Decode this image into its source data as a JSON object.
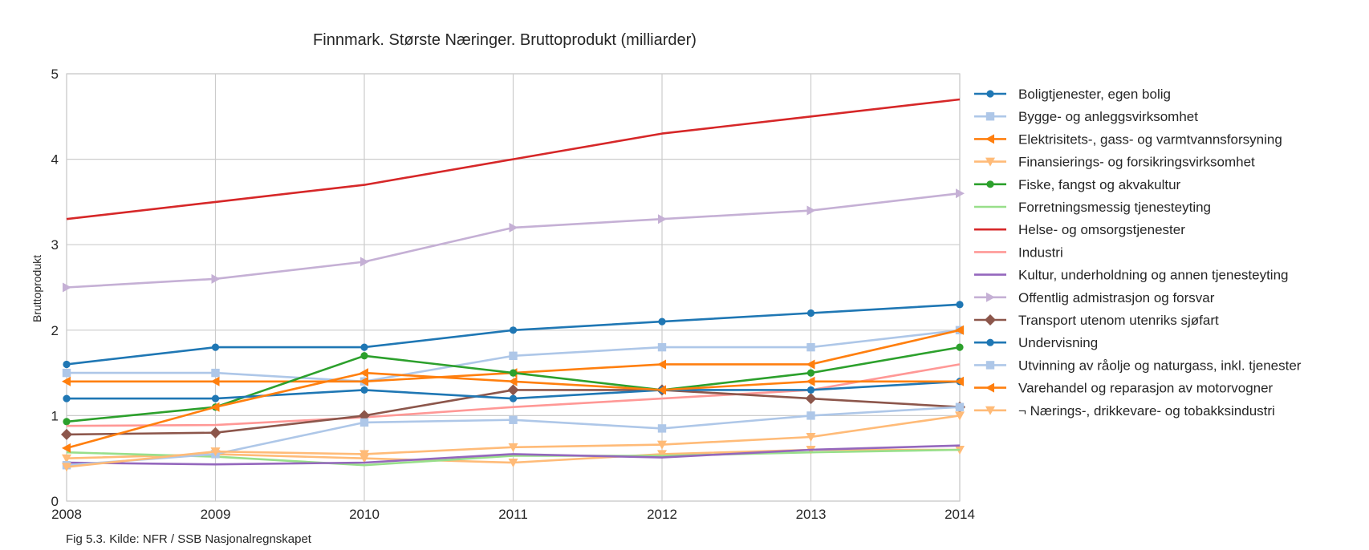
{
  "chart_data": {
    "type": "line",
    "title": "Finnmark. Største Næringer. Bruttoprodukt (milliarder)",
    "xlabel": "",
    "ylabel": "Bruttoprodukt",
    "x": [
      2008,
      2009,
      2010,
      2011,
      2012,
      2013,
      2014
    ],
    "x_ticks": [
      "2008",
      "2009",
      "2010",
      "2011",
      "2012",
      "2013",
      "2014"
    ],
    "ylim": [
      0,
      5
    ],
    "y_ticks": [
      "0",
      "1",
      "2",
      "3",
      "4",
      "5"
    ],
    "grid": true,
    "legend_position": "right",
    "series": [
      {
        "name": "Boligtjenester, egen bolig",
        "color": "#1f77b4",
        "marker": "circle",
        "values": [
          1.6,
          1.8,
          1.8,
          2.0,
          2.1,
          2.2,
          2.3
        ]
      },
      {
        "name": "Bygge- og anleggsvirksomhet",
        "color": "#aec7e8",
        "marker": "square",
        "values": [
          1.5,
          1.5,
          1.4,
          1.7,
          1.8,
          1.8,
          2.0
        ]
      },
      {
        "name": "Elektrisitets-, gass- og varmtvannsforsyning",
        "color": "#ff7f0e",
        "marker": "triangle-left",
        "values": [
          1.4,
          1.4,
          1.4,
          1.5,
          1.6,
          1.6,
          2.0
        ]
      },
      {
        "name": "Finansierings- og forsikringsvirksomhet",
        "color": "#ffbb78",
        "marker": "triangle-down",
        "values": [
          0.5,
          0.55,
          0.5,
          0.45,
          0.55,
          0.6,
          0.6
        ]
      },
      {
        "name": "Fiske, fangst og akvakultur",
        "color": "#2ca02c",
        "marker": "circle",
        "values": [
          0.93,
          1.1,
          1.7,
          1.5,
          1.3,
          1.5,
          1.8
        ]
      },
      {
        "name": "Forretningsmessig tjenesteyting",
        "color": "#98df8a",
        "marker": "none",
        "values": [
          0.57,
          0.52,
          0.42,
          0.53,
          0.53,
          0.57,
          0.6
        ]
      },
      {
        "name": "Helse- og omsorgstjenester",
        "color": "#d62728",
        "marker": "none",
        "values": [
          3.3,
          3.5,
          3.7,
          4.0,
          4.3,
          4.5,
          4.7
        ]
      },
      {
        "name": "Industri",
        "color": "#ff9896",
        "marker": "none",
        "values": [
          0.88,
          0.89,
          0.98,
          1.1,
          1.2,
          1.3,
          1.6
        ]
      },
      {
        "name": "Kultur, underholdning og annen tjenesteyting",
        "color": "#9467bd",
        "marker": "none",
        "values": [
          0.45,
          0.43,
          0.45,
          0.55,
          0.51,
          0.6,
          0.65
        ]
      },
      {
        "name": "Offentlig admistrasjon og forsvar",
        "color": "#c5b0d5",
        "marker": "triangle-right",
        "values": [
          2.5,
          2.6,
          2.8,
          3.2,
          3.3,
          3.4,
          3.6
        ]
      },
      {
        "name": "Transport utenom utenriks sjøfart",
        "color": "#8c564b",
        "marker": "diamond",
        "values": [
          0.78,
          0.8,
          1.0,
          1.3,
          1.3,
          1.2,
          1.1
        ]
      },
      {
        "name": "Undervisning",
        "color": "#1f77b4",
        "marker": "circle",
        "values": [
          1.2,
          1.2,
          1.3,
          1.2,
          1.3,
          1.3,
          1.4
        ]
      },
      {
        "name": "Utvinning av råolje og naturgass, inkl. tjenester",
        "color": "#aec7e8",
        "marker": "square",
        "values": [
          0.42,
          0.55,
          0.92,
          0.95,
          0.85,
          1.0,
          1.1
        ]
      },
      {
        "name": "Varehandel og reparasjon av motorvogner",
        "color": "#ff7f0e",
        "marker": "triangle-left",
        "values": [
          0.62,
          1.1,
          1.5,
          1.4,
          1.3,
          1.4,
          1.4
        ]
      },
      {
        "name": "¬ Nærings-, drikkevare- og tobakksindustri",
        "color": "#ffbb78",
        "marker": "triangle-down",
        "values": [
          0.4,
          0.58,
          0.55,
          0.63,
          0.66,
          0.75,
          1.0
        ]
      }
    ]
  },
  "caption": "Fig 5.3. Kilde: NFR / SSB Nasjonalregnskapet"
}
